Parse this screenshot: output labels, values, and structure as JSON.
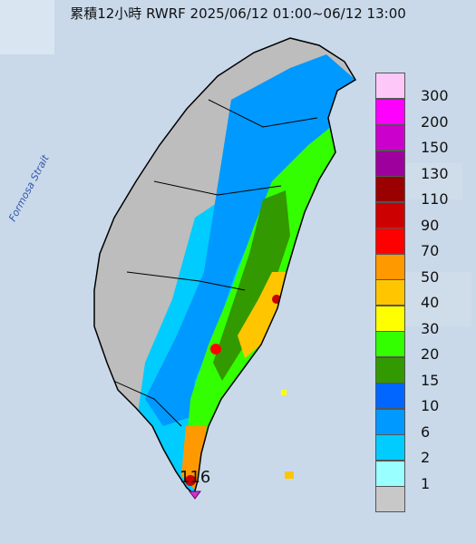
{
  "title": "累積12小時 RWRF 2025/06/12 01:00~06/12 13:00",
  "sea_label": "Formosa Strait",
  "max_station": {
    "value": "116",
    "marker_color": "#cc33cc",
    "marker_icon": "triangle-marker-icon"
  },
  "legend": [
    {
      "label": "300",
      "color": "#fdc8f8"
    },
    {
      "label": "200",
      "color": "#fe00fe"
    },
    {
      "label": "150",
      "color": "#cc00cc"
    },
    {
      "label": "130",
      "color": "#9d009d"
    },
    {
      "label": "110",
      "color": "#9a0000"
    },
    {
      "label": "90",
      "color": "#cc0000"
    },
    {
      "label": "70",
      "color": "#ff0000"
    },
    {
      "label": "50",
      "color": "#ff9900"
    },
    {
      "label": "40",
      "color": "#ffc600"
    },
    {
      "label": "30",
      "color": "#ffff00"
    },
    {
      "label": "20",
      "color": "#33ff00"
    },
    {
      "label": "15",
      "color": "#339900"
    },
    {
      "label": "10",
      "color": "#0066ff"
    },
    {
      "label": "6",
      "color": "#0099ff"
    },
    {
      "label": "2",
      "color": "#00ccff"
    },
    {
      "label": "1",
      "color": "#99ffff"
    },
    {
      "label": "",
      "color": "#c8c8c8"
    }
  ]
}
